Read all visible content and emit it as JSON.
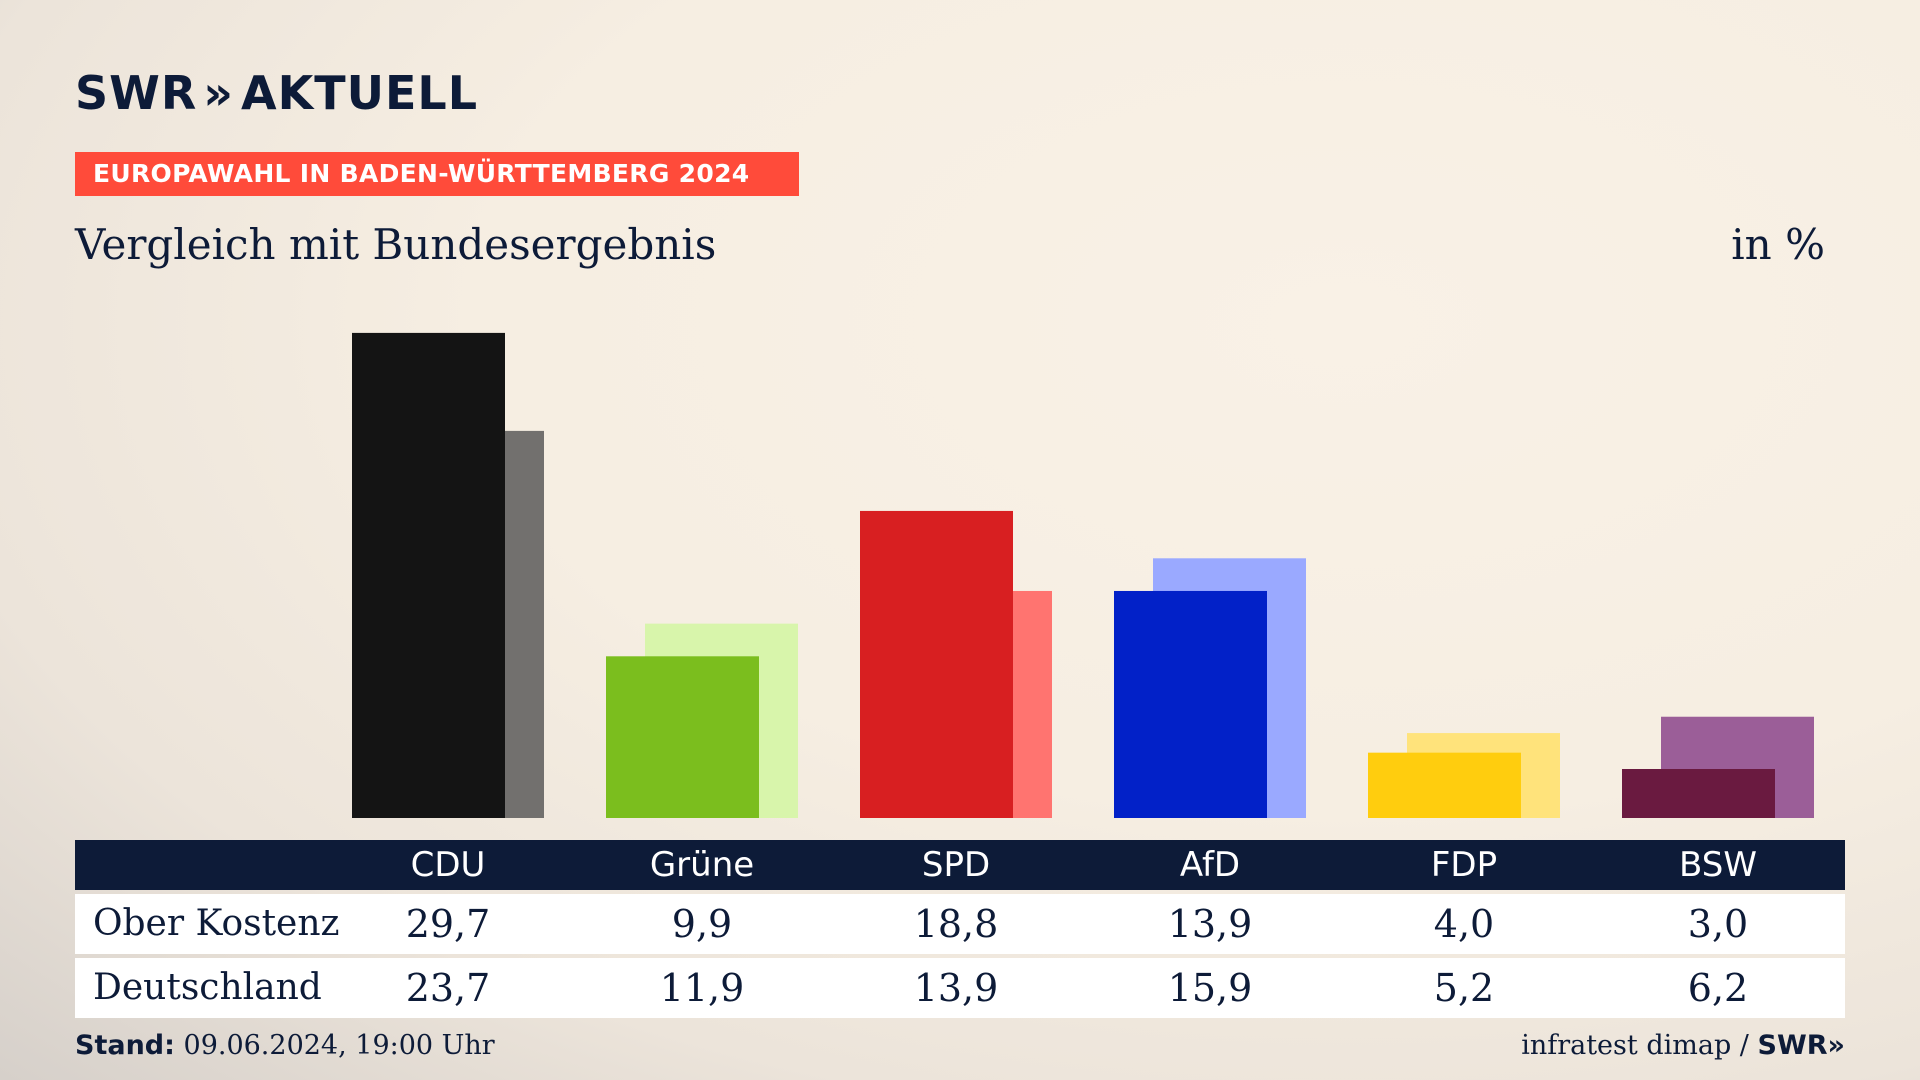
{
  "brand": {
    "logo": "SWR",
    "logo_chevrons": "»",
    "logo_suffix": "AKTUELL"
  },
  "header": {
    "tag": "EUROPAWAHL IN BADEN-WÜRTTEMBERG 2024",
    "subtitle": "Vergleich mit Bundesergebnis",
    "unit": "in %"
  },
  "chart_data": {
    "type": "bar",
    "categories": [
      "CDU",
      "Grüne",
      "SPD",
      "AfD",
      "FDP",
      "BSW"
    ],
    "series": [
      {
        "name": "Ober Kostenz",
        "values": [
          29.7,
          9.9,
          18.8,
          13.9,
          4.0,
          3.0
        ]
      },
      {
        "name": "Deutschland",
        "values": [
          23.7,
          11.9,
          13.9,
          15.9,
          5.2,
          6.2
        ]
      }
    ],
    "display_values": [
      [
        "29,7",
        "9,9",
        "18,8",
        "13,9",
        "4,0",
        "3,0"
      ],
      [
        "23,7",
        "11,9",
        "13,9",
        "15,9",
        "5,2",
        "6,2"
      ]
    ],
    "colors_local": [
      "#141414",
      "#7bbe1e",
      "#d81f21",
      "#0221c8",
      "#ffcd0e",
      "#6a1a40"
    ],
    "colors_national": [
      "#72706e",
      "#d8f5ab",
      "#ff7470",
      "#9aa9ff",
      "#ffe37b",
      "#9b5e98"
    ],
    "ylim": [
      0,
      30
    ],
    "grid": false,
    "legend": "none"
  },
  "footer": {
    "stand_label": "Stand:",
    "stand_value": "09.06.2024, 19:00 Uhr",
    "source": "infratest dimap /",
    "source_brand": "SWR",
    "source_chevrons": "»"
  }
}
